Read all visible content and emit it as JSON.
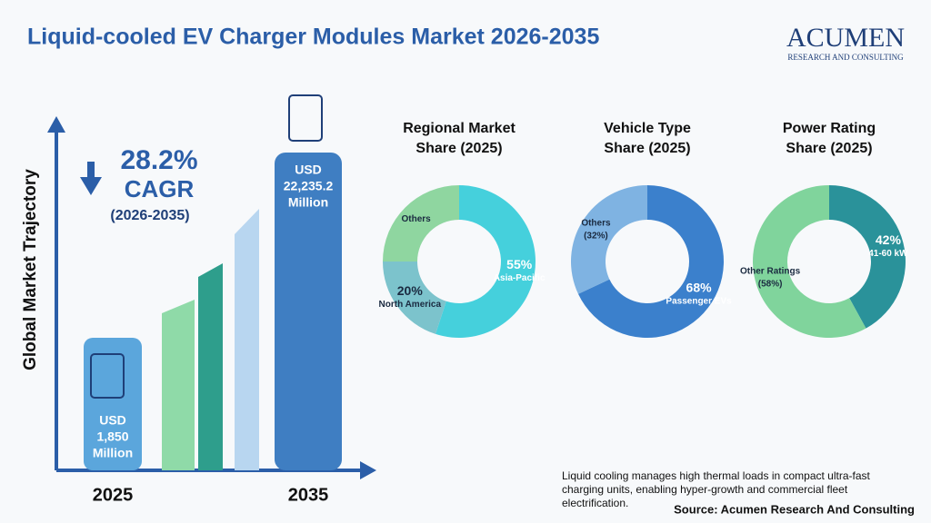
{
  "header": {
    "title": "Liquid-cooled EV Charger Modules Market 2026-2035",
    "logo": "ACUMEN",
    "logo_sub": "RESEARCH AND CONSULTING"
  },
  "trajectory": {
    "axis_label": "Global Market Trajectory",
    "cagr": "28.2%",
    "cagr_word": "CAGR",
    "cagr_period": "(2026-2035)",
    "start_year": "2025",
    "end_year": "2035",
    "start_value": [
      "USD",
      "1,850",
      "Million"
    ],
    "end_value": [
      "USD",
      "22,235.2",
      "Million"
    ]
  },
  "chart_data": [
    {
      "type": "pie",
      "title": [
        "Regional Market",
        "Share (2025)"
      ],
      "categories": [
        "Asia-Pacific",
        "North America",
        "Others"
      ],
      "values": [
        55,
        20,
        25
      ],
      "value_labels": [
        "55%",
        "20%",
        null
      ],
      "colors": [
        "#45d0dc",
        "#7cc3cc",
        "#8fd6a0"
      ]
    },
    {
      "type": "pie",
      "title": [
        "Vehicle Type",
        "Share (2025)"
      ],
      "categories": [
        "Passenger EVs",
        "Others"
      ],
      "values": [
        68,
        32
      ],
      "value_labels": [
        "68%",
        "(32%)"
      ],
      "colors": [
        "#3b80cc",
        "#7fb3e2"
      ]
    },
    {
      "type": "pie",
      "title": [
        "Power Rating",
        "Share (2025)"
      ],
      "categories": [
        "41-60 kW",
        "Other Ratings"
      ],
      "values": [
        42,
        58
      ],
      "value_labels": [
        "42%",
        "(58%)"
      ],
      "colors": [
        "#2a929a",
        "#80d49c"
      ]
    }
  ],
  "footer": {
    "note": [
      "Liquid cooling manages high thermal loads in compact ultra-fast",
      "charging units, enabling hyper-growth and commercial fleet",
      "electrification."
    ],
    "source": "Source: Acumen Research And Consulting"
  }
}
